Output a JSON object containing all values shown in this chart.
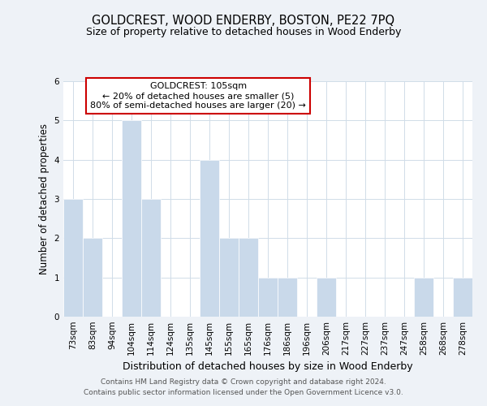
{
  "title": "GOLDCREST, WOOD ENDERBY, BOSTON, PE22 7PQ",
  "subtitle": "Size of property relative to detached houses in Wood Enderby",
  "xlabel": "Distribution of detached houses by size in Wood Enderby",
  "ylabel": "Number of detached properties",
  "footer_line1": "Contains HM Land Registry data © Crown copyright and database right 2024.",
  "footer_line2": "Contains public sector information licensed under the Open Government Licence v3.0.",
  "bin_labels": [
    "73sqm",
    "83sqm",
    "94sqm",
    "104sqm",
    "114sqm",
    "124sqm",
    "135sqm",
    "145sqm",
    "155sqm",
    "165sqm",
    "176sqm",
    "186sqm",
    "196sqm",
    "206sqm",
    "217sqm",
    "227sqm",
    "237sqm",
    "247sqm",
    "258sqm",
    "268sqm",
    "278sqm"
  ],
  "bar_values": [
    3,
    2,
    0,
    5,
    3,
    0,
    0,
    4,
    2,
    2,
    1,
    1,
    0,
    1,
    0,
    0,
    0,
    0,
    1,
    0,
    1
  ],
  "bar_color": "#c9d9ea",
  "bar_edge_color": "#ffffff",
  "annotation_box_color": "#ffffff",
  "annotation_border_color": "#cc0000",
  "annotation_text_line1": "GOLDCREST: 105sqm",
  "annotation_text_line2": "← 20% of detached houses are smaller (5)",
  "annotation_text_line3": "80% of semi-detached houses are larger (20) →",
  "ylim": [
    0,
    6
  ],
  "yticks": [
    0,
    1,
    2,
    3,
    4,
    5,
    6
  ],
  "grid_color": "#d0dce8",
  "bg_color": "#eef2f7",
  "plot_bg_color": "#ffffff",
  "title_fontsize": 10.5,
  "subtitle_fontsize": 9,
  "xlabel_fontsize": 9,
  "ylabel_fontsize": 8.5,
  "tick_fontsize": 7.5,
  "footer_fontsize": 6.5
}
